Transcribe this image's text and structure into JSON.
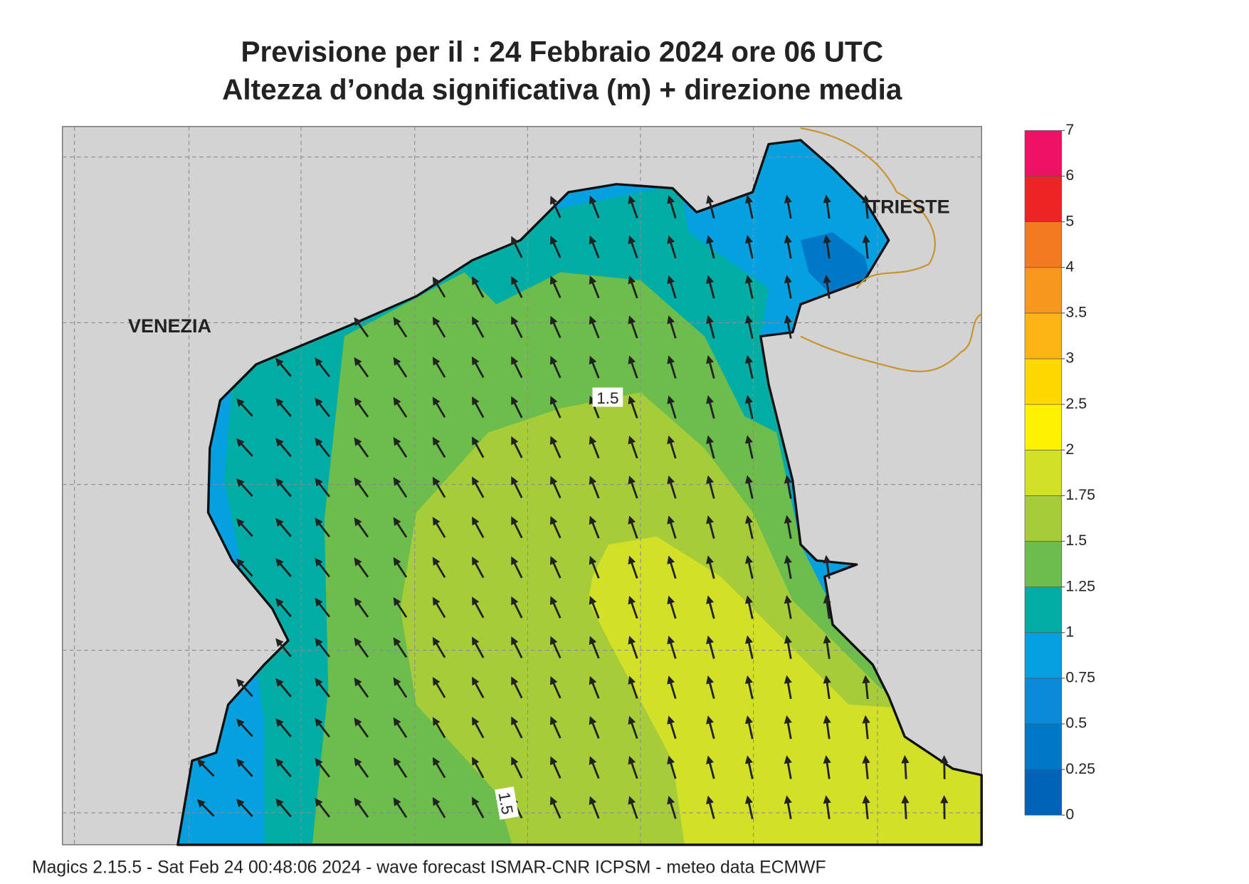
{
  "header": {
    "title": "Previsione per il  :  24  Febbraio 2024   ore 06 UTC",
    "subtitle": "Altezza d’onda significativa (m) + direzione media"
  },
  "map": {
    "places": [
      "VENEZIA",
      "TRIESTE"
    ],
    "contour_labels": [
      "1.5",
      "1.5"
    ]
  },
  "colorbar": {
    "ticks": [
      0,
      0.25,
      0.5,
      0.75,
      1,
      1.25,
      1.5,
      1.75,
      2,
      2.5,
      3,
      3.5,
      4,
      5,
      6,
      7
    ],
    "colors": [
      "#0063b8",
      "#0078c8",
      "#0a8ad8",
      "#05a0e0",
      "#00aca4",
      "#6cbd4c",
      "#a6cc3a",
      "#d3e028",
      "#fff200",
      "#ffd800",
      "#fcb515",
      "#f7971e",
      "#f37a21",
      "#ee2424",
      "#ee1166"
    ]
  },
  "footer": "Magics 2.15.5 - Sat Feb 24 00:48:06 2024 - wave forecast  ISMAR-CNR  ICPSM - meteo data    ECMWF"
}
